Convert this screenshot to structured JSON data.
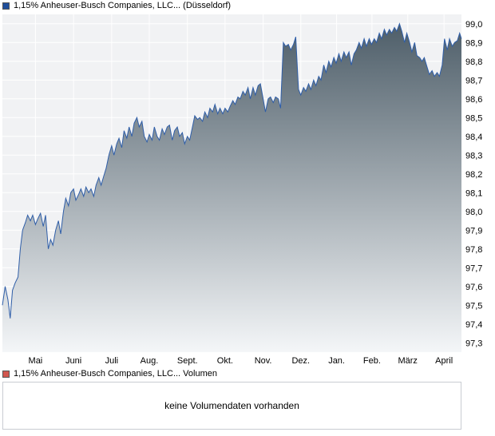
{
  "price_legend": {
    "label": "1,15% Anheuser-Busch Companies, LLC... (Düsseldorf)",
    "swatch_color": "#1f4e9a"
  },
  "volume_legend": {
    "label": "1,15% Anheuser-Busch Companies, LLC... Volumen",
    "swatch_color": "#d1574f"
  },
  "volume_panel": {
    "message": "keine Volumendaten vorhanden"
  },
  "colors": {
    "line": "#2f5ea8",
    "fill_top": "#4e5e69",
    "fill_bottom": "#f4f6f8",
    "plot_bg": "#f1f2f4",
    "grid": "#ffffff"
  },
  "chart_data": {
    "type": "area",
    "title": "",
    "xlabel": "",
    "ylabel": "",
    "ylim": [
      97.25,
      99.05
    ],
    "y_ticks": [
      97.3,
      97.4,
      97.5,
      97.6,
      97.7,
      97.8,
      97.9,
      98.0,
      98.1,
      98.2,
      98.3,
      98.4,
      98.5,
      98.6,
      98.7,
      98.8,
      98.9,
      99.0
    ],
    "y_tick_labels": [
      "97,3",
      "97,4",
      "97,5",
      "97,6",
      "97,7",
      "97,8",
      "97,9",
      "98,0",
      "98,1",
      "98,2",
      "98,3",
      "98,4",
      "98,5",
      "98,6",
      "98,7",
      "98,8",
      "98,9",
      "99,0"
    ],
    "x_range": [
      0,
      100
    ],
    "x_tick_positions": [
      7.2,
      15.5,
      23.8,
      32.0,
      40.3,
      48.5,
      56.8,
      65.0,
      72.8,
      80.5,
      88.3,
      96.2
    ],
    "x_tick_labels": [
      "Mai",
      "Juni",
      "Juli",
      "Aug.",
      "Sept.",
      "Okt.",
      "Nov.",
      "Dez.",
      "Jan.",
      "Feb.",
      "März",
      "April"
    ],
    "grid": true,
    "series": [
      {
        "values": [
          [
            0.0,
            97.5
          ],
          [
            0.6,
            97.6
          ],
          [
            1.2,
            97.53
          ],
          [
            1.7,
            97.43
          ],
          [
            2.2,
            97.58
          ],
          [
            2.8,
            97.62
          ],
          [
            3.4,
            97.65
          ],
          [
            3.9,
            97.8
          ],
          [
            4.4,
            97.9
          ],
          [
            5.0,
            97.94
          ],
          [
            5.5,
            97.98
          ],
          [
            6.1,
            97.95
          ],
          [
            6.6,
            97.98
          ],
          [
            7.2,
            97.93
          ],
          [
            7.7,
            97.96
          ],
          [
            8.3,
            97.99
          ],
          [
            8.9,
            97.92
          ],
          [
            9.4,
            97.98
          ],
          [
            10.0,
            97.8
          ],
          [
            10.5,
            97.85
          ],
          [
            11.0,
            97.82
          ],
          [
            11.6,
            97.9
          ],
          [
            12.2,
            97.95
          ],
          [
            12.7,
            97.88
          ],
          [
            13.3,
            98.0
          ],
          [
            13.8,
            98.07
          ],
          [
            14.4,
            98.03
          ],
          [
            14.9,
            98.1
          ],
          [
            15.5,
            98.12
          ],
          [
            16.0,
            98.06
          ],
          [
            16.6,
            98.09
          ],
          [
            17.1,
            98.12
          ],
          [
            17.7,
            98.08
          ],
          [
            18.2,
            98.13
          ],
          [
            18.8,
            98.1
          ],
          [
            19.3,
            98.12
          ],
          [
            19.9,
            98.08
          ],
          [
            20.4,
            98.14
          ],
          [
            21.0,
            98.18
          ],
          [
            21.5,
            98.14
          ],
          [
            22.1,
            98.19
          ],
          [
            22.6,
            98.23
          ],
          [
            23.2,
            98.3
          ],
          [
            23.8,
            98.35
          ],
          [
            24.3,
            98.3
          ],
          [
            24.9,
            98.36
          ],
          [
            25.4,
            98.39
          ],
          [
            26.0,
            98.34
          ],
          [
            26.5,
            98.43
          ],
          [
            27.1,
            98.39
          ],
          [
            27.6,
            98.45
          ],
          [
            28.2,
            98.4
          ],
          [
            28.7,
            98.47
          ],
          [
            29.3,
            98.5
          ],
          [
            29.8,
            98.45
          ],
          [
            30.4,
            98.48
          ],
          [
            30.9,
            98.4
          ],
          [
            31.5,
            98.37
          ],
          [
            32.0,
            98.41
          ],
          [
            32.6,
            98.38
          ],
          [
            33.1,
            98.45
          ],
          [
            33.7,
            98.4
          ],
          [
            34.2,
            98.38
          ],
          [
            34.8,
            98.44
          ],
          [
            35.3,
            98.41
          ],
          [
            35.9,
            98.45
          ],
          [
            36.4,
            98.46
          ],
          [
            37.0,
            98.38
          ],
          [
            37.5,
            98.43
          ],
          [
            38.1,
            98.45
          ],
          [
            38.6,
            98.4
          ],
          [
            39.2,
            98.42
          ],
          [
            39.7,
            98.36
          ],
          [
            40.3,
            98.4
          ],
          [
            40.8,
            98.38
          ],
          [
            41.4,
            98.45
          ],
          [
            41.9,
            98.51
          ],
          [
            42.5,
            98.49
          ],
          [
            43.0,
            98.5
          ],
          [
            43.6,
            98.48
          ],
          [
            44.1,
            98.53
          ],
          [
            44.7,
            98.5
          ],
          [
            45.2,
            98.55
          ],
          [
            45.8,
            98.53
          ],
          [
            46.3,
            98.57
          ],
          [
            46.9,
            98.52
          ],
          [
            47.4,
            98.55
          ],
          [
            48.0,
            98.52
          ],
          [
            48.5,
            98.55
          ],
          [
            49.1,
            98.53
          ],
          [
            49.6,
            98.56
          ],
          [
            50.2,
            98.59
          ],
          [
            50.7,
            98.57
          ],
          [
            51.3,
            98.61
          ],
          [
            51.8,
            98.6
          ],
          [
            52.4,
            98.64
          ],
          [
            52.9,
            98.62
          ],
          [
            53.5,
            98.66
          ],
          [
            54.0,
            98.6
          ],
          [
            54.6,
            98.66
          ],
          [
            55.1,
            98.62
          ],
          [
            55.7,
            98.67
          ],
          [
            56.2,
            98.68
          ],
          [
            56.8,
            98.6
          ],
          [
            57.3,
            98.53
          ],
          [
            57.9,
            98.6
          ],
          [
            58.4,
            98.61
          ],
          [
            59.0,
            98.58
          ],
          [
            59.5,
            98.61
          ],
          [
            60.1,
            98.6
          ],
          [
            60.6,
            98.55
          ],
          [
            61.2,
            98.9
          ],
          [
            61.7,
            98.88
          ],
          [
            62.3,
            98.89
          ],
          [
            62.8,
            98.86
          ],
          [
            63.4,
            98.89
          ],
          [
            63.9,
            98.93
          ],
          [
            64.5,
            98.65
          ],
          [
            65.0,
            98.62
          ],
          [
            65.6,
            98.66
          ],
          [
            66.1,
            98.64
          ],
          [
            66.7,
            98.68
          ],
          [
            67.2,
            98.65
          ],
          [
            67.8,
            98.7
          ],
          [
            68.3,
            98.67
          ],
          [
            68.9,
            98.72
          ],
          [
            69.4,
            98.7
          ],
          [
            70.0,
            98.78
          ],
          [
            70.5,
            98.74
          ],
          [
            71.1,
            98.8
          ],
          [
            71.6,
            98.77
          ],
          [
            72.2,
            98.82
          ],
          [
            72.7,
            98.79
          ],
          [
            73.3,
            98.84
          ],
          [
            73.8,
            98.8
          ],
          [
            74.4,
            98.85
          ],
          [
            74.9,
            98.82
          ],
          [
            75.5,
            98.85
          ],
          [
            76.0,
            98.78
          ],
          [
            76.6,
            98.84
          ],
          [
            77.1,
            98.86
          ],
          [
            77.7,
            98.9
          ],
          [
            78.2,
            98.87
          ],
          [
            78.8,
            98.92
          ],
          [
            79.3,
            98.88
          ],
          [
            79.9,
            98.92
          ],
          [
            80.4,
            98.89
          ],
          [
            81.0,
            98.92
          ],
          [
            81.5,
            98.9
          ],
          [
            82.1,
            98.95
          ],
          [
            82.6,
            98.92
          ],
          [
            83.2,
            98.97
          ],
          [
            83.7,
            98.94
          ],
          [
            84.3,
            98.97
          ],
          [
            84.8,
            98.95
          ],
          [
            85.4,
            98.98
          ],
          [
            85.9,
            98.96
          ],
          [
            86.5,
            99.0
          ],
          [
            87.0,
            98.96
          ],
          [
            87.6,
            98.9
          ],
          [
            88.1,
            98.95
          ],
          [
            88.7,
            98.9
          ],
          [
            89.2,
            98.85
          ],
          [
            89.8,
            98.9
          ],
          [
            90.3,
            98.83
          ],
          [
            90.9,
            98.82
          ],
          [
            91.4,
            98.8
          ],
          [
            91.9,
            98.82
          ],
          [
            92.5,
            98.77
          ],
          [
            93.0,
            98.73
          ],
          [
            93.6,
            98.75
          ],
          [
            94.1,
            98.72
          ],
          [
            94.7,
            98.74
          ],
          [
            95.2,
            98.72
          ],
          [
            95.8,
            98.78
          ],
          [
            96.3,
            98.92
          ],
          [
            96.9,
            98.86
          ],
          [
            97.4,
            98.92
          ],
          [
            98.0,
            98.88
          ],
          [
            98.5,
            98.9
          ],
          [
            99.1,
            98.91
          ],
          [
            99.6,
            98.95
          ],
          [
            100.0,
            98.92
          ]
        ]
      }
    ]
  }
}
